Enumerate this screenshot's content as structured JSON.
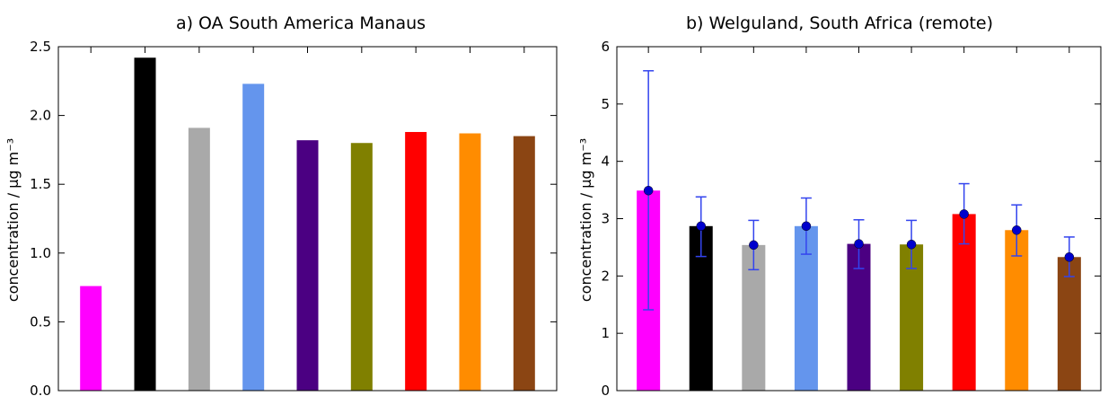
{
  "chart_data": [
    {
      "type": "bar",
      "title": "a) OA South America Manaus",
      "ylabel": "concentration / μg m⁻³",
      "xlabel": "",
      "ylim": [
        0,
        2.5
      ],
      "yticks": [
        "0.0",
        "0.5",
        "1.0",
        "1.5",
        "2.0",
        "2.5"
      ],
      "ytick_values": [
        0,
        0.5,
        1.0,
        1.5,
        2.0,
        2.5
      ],
      "grid": false,
      "values": [
        0.76,
        2.42,
        1.91,
        2.23,
        1.82,
        1.8,
        1.88,
        1.87,
        1.85
      ],
      "colors": [
        "#ff00ff",
        "#000000",
        "#a9a9a9",
        "#6495ed",
        "#4b0082",
        "#808000",
        "#ff0000",
        "#ff8c00",
        "#8b4513"
      ]
    },
    {
      "type": "bar",
      "title": "b) Welguland, South Africa (remote)",
      "ylabel": "concentration / μg m⁻³",
      "xlabel": "",
      "ylim": [
        0,
        6
      ],
      "yticks": [
        "0",
        "1",
        "2",
        "3",
        "4",
        "5",
        "6"
      ],
      "ytick_values": [
        0,
        1,
        2,
        3,
        4,
        5,
        6
      ],
      "grid": false,
      "values": [
        3.49,
        2.87,
        2.54,
        2.87,
        2.56,
        2.55,
        3.08,
        2.8,
        2.33
      ],
      "markers": [
        3.49,
        2.87,
        2.54,
        2.87,
        2.56,
        2.55,
        3.08,
        2.8,
        2.33
      ],
      "err_low": [
        1.41,
        2.34,
        2.11,
        2.38,
        2.13,
        2.13,
        2.56,
        2.35,
        1.99
      ],
      "err_high": [
        5.58,
        3.38,
        2.97,
        3.36,
        2.98,
        2.97,
        3.61,
        3.24,
        2.68
      ],
      "colors": [
        "#ff00ff",
        "#000000",
        "#a9a9a9",
        "#6495ed",
        "#4b0082",
        "#808000",
        "#ff0000",
        "#ff8c00",
        "#8b4513"
      ],
      "marker_color": "#0000cc",
      "errorbar_color": "#3344ee"
    }
  ]
}
